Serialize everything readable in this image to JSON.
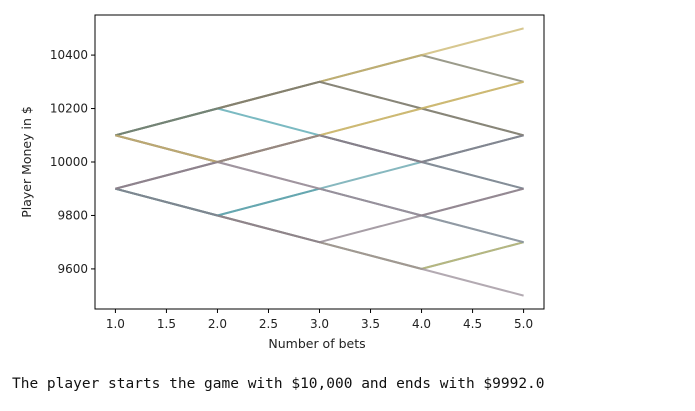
{
  "chart_data": {
    "type": "line",
    "title": "",
    "xlabel": "Number of bets",
    "ylabel": "Player Money in $",
    "xlim": [
      0.8,
      5.2
    ],
    "ylim": [
      9450,
      10550
    ],
    "x_ticks": [
      1.0,
      1.5,
      2.0,
      2.5,
      3.0,
      3.5,
      4.0,
      4.5,
      5.0
    ],
    "x_tick_labels": [
      "1.0",
      "1.5",
      "2.0",
      "2.5",
      "3.0",
      "3.5",
      "4.0",
      "4.5",
      "5.0"
    ],
    "y_ticks": [
      9600,
      9800,
      10000,
      10200,
      10400
    ],
    "y_tick_labels": [
      "9600",
      "9800",
      "10000",
      "10200",
      "10400"
    ],
    "grid": false,
    "legend": false,
    "x": [
      1,
      2,
      3,
      4,
      5
    ],
    "series": [
      {
        "color": "#7a7a64",
        "values": [
          10100,
          10200,
          10300,
          10400,
          10300
        ]
      },
      {
        "color": "#c9b46a",
        "values": [
          10100,
          10000,
          10100,
          10200,
          10300
        ]
      },
      {
        "color": "#c9b46a",
        "values": [
          10100,
          10200,
          10300,
          10400,
          10500
        ]
      },
      {
        "color": "#9a8e98",
        "values": [
          10100,
          10200,
          10300,
          10200,
          10100
        ]
      },
      {
        "color": "#4fa3ad",
        "values": [
          9900,
          9800,
          9700,
          9600,
          9700
        ]
      },
      {
        "color": "#c9b46a",
        "values": [
          9900,
          9800,
          9700,
          9600,
          9700
        ]
      },
      {
        "color": "#9a8e98",
        "values": [
          9900,
          9800,
          9700,
          9600,
          9500
        ]
      },
      {
        "color": "#8a7e88",
        "values": [
          9900,
          10000,
          10100,
          10000,
          10100
        ]
      },
      {
        "color": "#4fa3ad",
        "values": [
          10100,
          10200,
          10100,
          10000,
          9900
        ]
      },
      {
        "color": "#4fa3ad",
        "values": [
          9900,
          9800,
          9900,
          9800,
          9700
        ]
      },
      {
        "color": "#5fa0aa",
        "values": [
          9900,
          9800,
          9900,
          10000,
          10100
        ]
      },
      {
        "color": "#9a8e98",
        "values": [
          10100,
          10000,
          9900,
          9800,
          9900
        ]
      },
      {
        "color": "#9a8e98",
        "values": [
          9900,
          10000,
          9900,
          9800,
          9700
        ]
      },
      {
        "color": "#8a7e88",
        "values": [
          9900,
          9800,
          9700,
          9800,
          9900
        ]
      },
      {
        "color": "#8a7e88",
        "values": [
          10100,
          10000,
          10100,
          10000,
          9900
        ]
      },
      {
        "color": "#7a7a64",
        "values": [
          10100,
          10200,
          10300,
          10200,
          10100
        ]
      },
      {
        "color": "#c9b46a",
        "values": [
          10100,
          10000,
          10100,
          10200,
          10300
        ]
      },
      {
        "color": "#8a7e88",
        "values": [
          9900,
          10000,
          10100,
          10000,
          10100
        ]
      }
    ]
  },
  "output": {
    "text": "The player starts the game with $10,000 and ends with $9992.0"
  }
}
